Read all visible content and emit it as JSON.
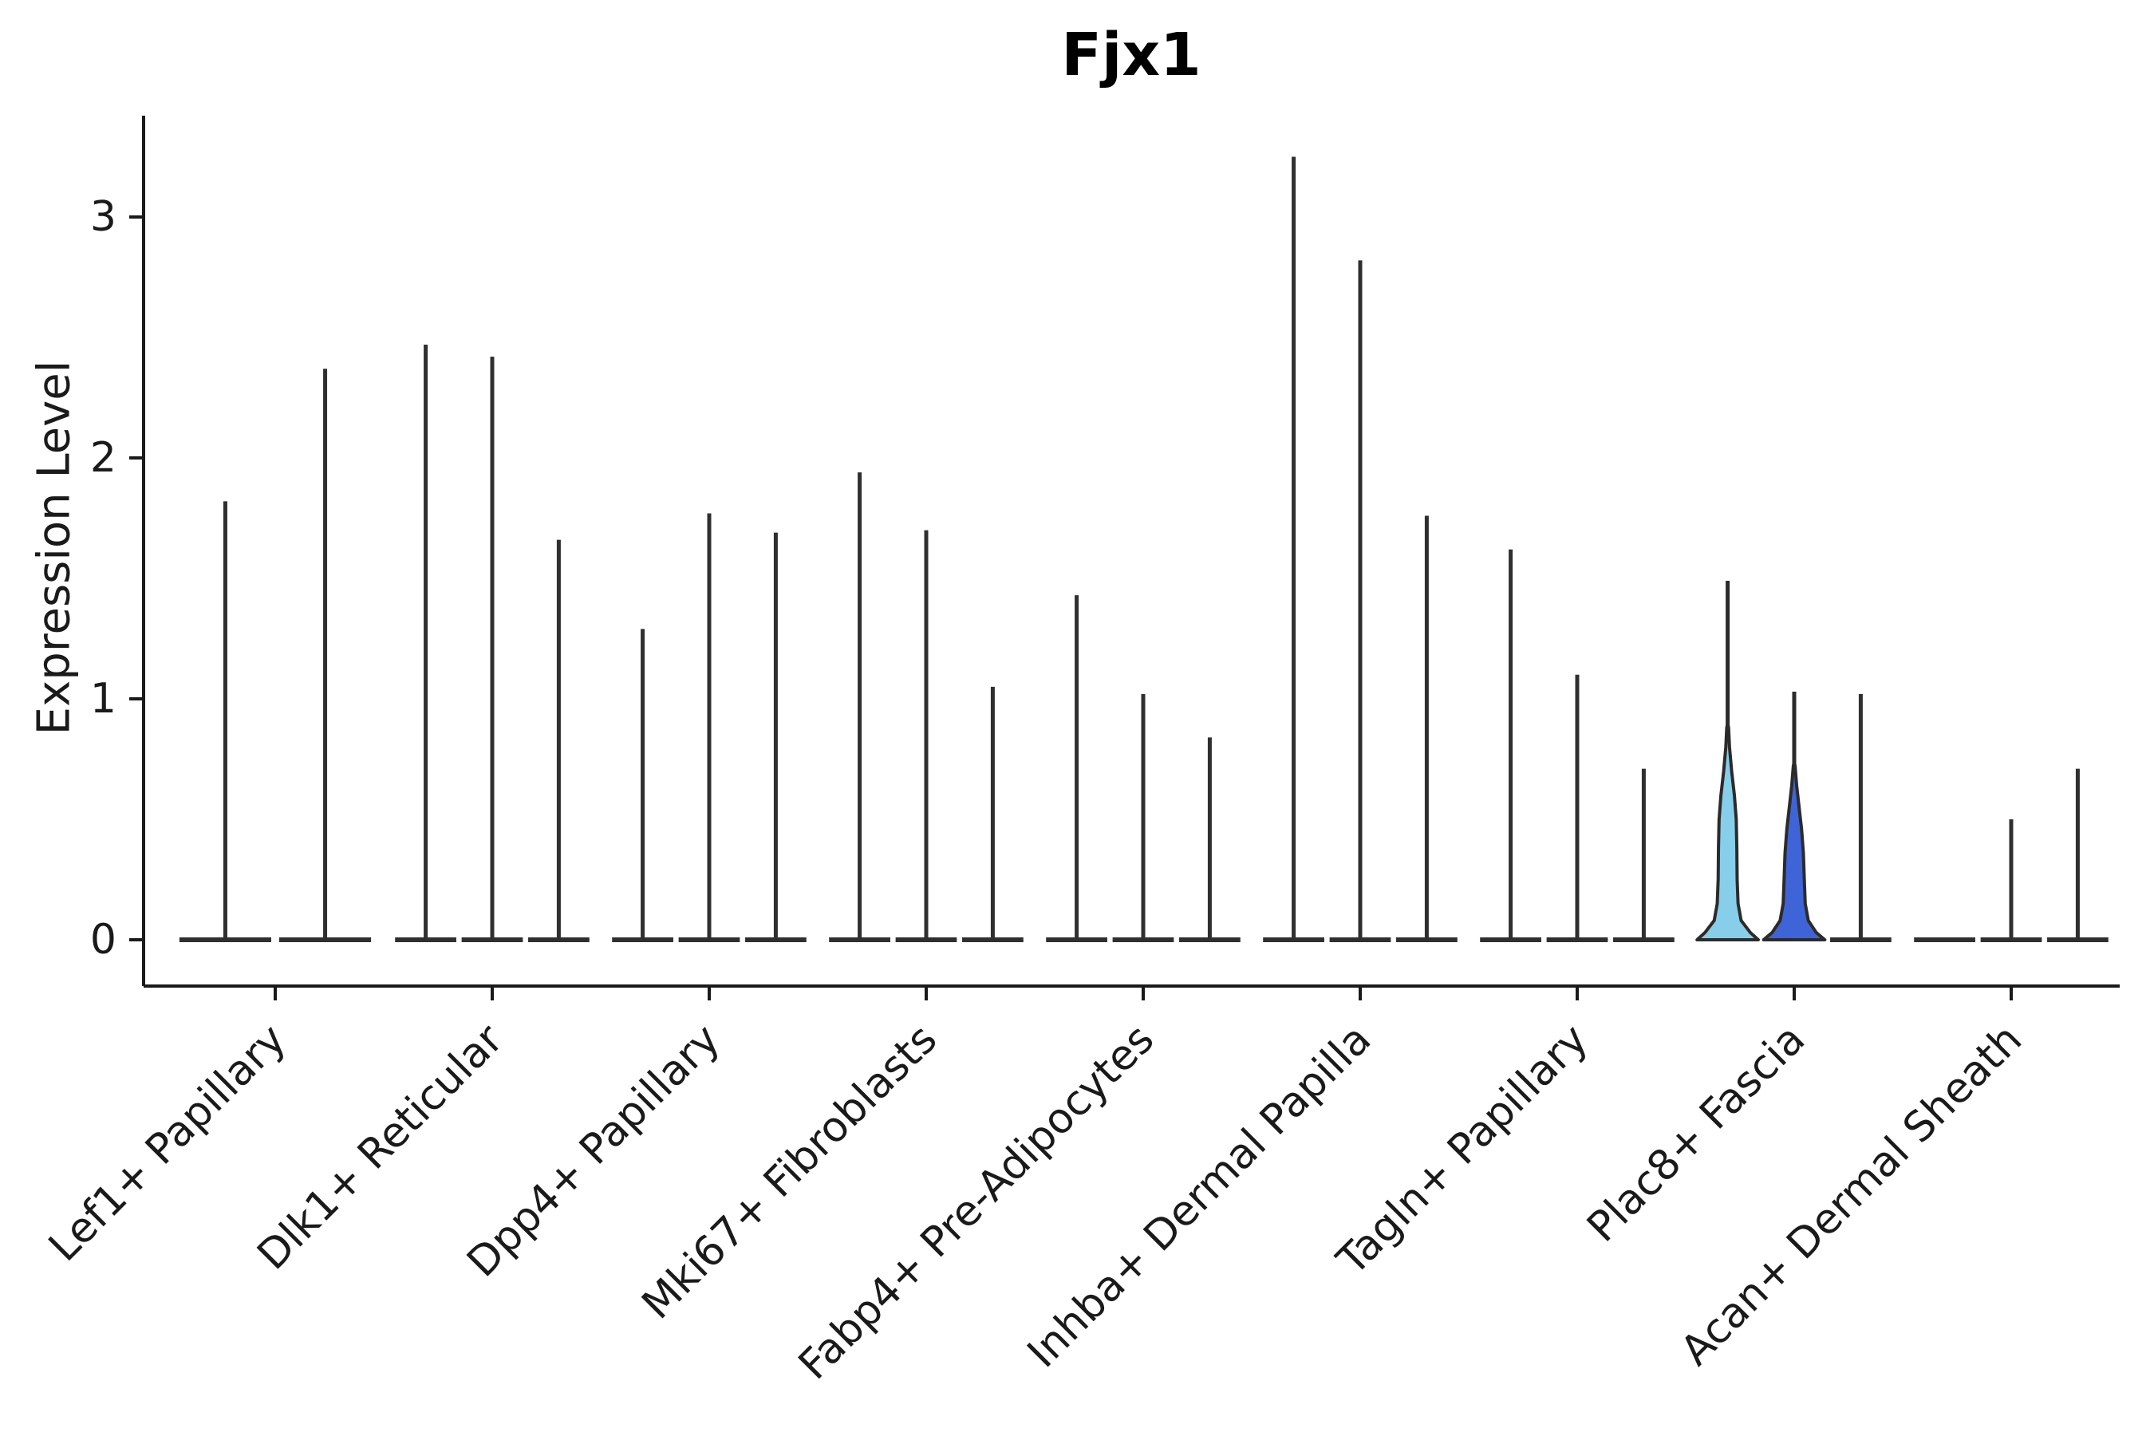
{
  "chart_data": {
    "type": "violin",
    "title": "Fjx1",
    "xlabel": "",
    "ylabel": "Expression Level",
    "ylim": [
      -0.19,
      3.42
    ],
    "yticks": [
      0,
      1,
      2,
      3
    ],
    "grid": false,
    "legend": "none",
    "categories": [
      "Lef1+ Papillary",
      "Dlk1+ Reticular",
      "Dpp4+ Papillary",
      "Mki67+ Fibroblasts",
      "Fabp4+ Pre-Adipocytes",
      "Inhba+ Dermal Papilla",
      "Tagln+ Papillary",
      "Plac8+ Fascia",
      "Acan+ Dermal Sheath"
    ],
    "colors": {
      "spike": "#2f2f2f",
      "spine": "#1a1a1a",
      "violin_light_blue": "#87CEEB",
      "violin_royal_blue": "#3F64D7",
      "violin_edge": "#2b2b2b"
    },
    "violins": [
      {
        "category": "Lef1+ Papillary",
        "cat": 0,
        "slot": 0,
        "slots": 2,
        "max": 1.82
      },
      {
        "category": "Lef1+ Papillary",
        "cat": 0,
        "slot": 1,
        "slots": 2,
        "max": 2.37
      },
      {
        "category": "Dlk1+ Reticular",
        "cat": 1,
        "slot": 0,
        "slots": 3,
        "max": 2.47
      },
      {
        "category": "Dlk1+ Reticular",
        "cat": 1,
        "slot": 1,
        "slots": 3,
        "max": 2.42
      },
      {
        "category": "Dlk1+ Reticular",
        "cat": 1,
        "slot": 2,
        "slots": 3,
        "max": 1.66
      },
      {
        "category": "Dpp4+ Papillary",
        "cat": 2,
        "slot": 0,
        "slots": 3,
        "max": 1.29
      },
      {
        "category": "Dpp4+ Papillary",
        "cat": 2,
        "slot": 1,
        "slots": 3,
        "max": 1.77
      },
      {
        "category": "Dpp4+ Papillary",
        "cat": 2,
        "slot": 2,
        "slots": 3,
        "max": 1.69
      },
      {
        "category": "Mki67+ Fibroblasts",
        "cat": 3,
        "slot": 0,
        "slots": 3,
        "max": 1.94
      },
      {
        "category": "Mki67+ Fibroblasts",
        "cat": 3,
        "slot": 1,
        "slots": 3,
        "max": 1.7
      },
      {
        "category": "Mki67+ Fibroblasts",
        "cat": 3,
        "slot": 2,
        "slots": 3,
        "max": 1.05
      },
      {
        "category": "Fabp4+ Pre-Adipocytes",
        "cat": 4,
        "slot": 0,
        "slots": 3,
        "max": 1.43
      },
      {
        "category": "Fabp4+ Pre-Adipocytes",
        "cat": 4,
        "slot": 1,
        "slots": 3,
        "max": 1.02
      },
      {
        "category": "Fabp4+ Pre-Adipocytes",
        "cat": 4,
        "slot": 2,
        "slots": 3,
        "max": 0.84
      },
      {
        "category": "Inhba+ Dermal Papilla",
        "cat": 5,
        "slot": 0,
        "slots": 3,
        "max": 3.25
      },
      {
        "category": "Inhba+ Dermal Papilla",
        "cat": 5,
        "slot": 1,
        "slots": 3,
        "max": 2.82
      },
      {
        "category": "Inhba+ Dermal Papilla",
        "cat": 5,
        "slot": 2,
        "slots": 3,
        "max": 1.76
      },
      {
        "category": "Tagln+ Papillary",
        "cat": 6,
        "slot": 0,
        "slots": 3,
        "max": 1.62
      },
      {
        "category": "Tagln+ Papillary",
        "cat": 6,
        "slot": 1,
        "slots": 3,
        "max": 1.1
      },
      {
        "category": "Tagln+ Papillary",
        "cat": 6,
        "slot": 2,
        "slots": 3,
        "max": 0.71
      },
      {
        "category": "Plac8+ Fascia",
        "cat": 7,
        "slot": 0,
        "slots": 3,
        "max": 1.49,
        "fill": "#87CEEB",
        "profile": [
          [
            0.0,
            1.0
          ],
          [
            0.03,
            0.74
          ],
          [
            0.08,
            0.44
          ],
          [
            0.15,
            0.34
          ],
          [
            0.25,
            0.31
          ],
          [
            0.38,
            0.3
          ],
          [
            0.5,
            0.28
          ],
          [
            0.6,
            0.22
          ],
          [
            0.7,
            0.13
          ],
          [
            0.8,
            0.06
          ],
          [
            0.88,
            0.03
          ]
        ]
      },
      {
        "category": "Plac8+ Fascia",
        "cat": 7,
        "slot": 1,
        "slots": 3,
        "max": 1.03,
        "fill": "#3F64D7",
        "profile": [
          [
            0.0,
            1.0
          ],
          [
            0.03,
            0.72
          ],
          [
            0.08,
            0.46
          ],
          [
            0.15,
            0.36
          ],
          [
            0.25,
            0.33
          ],
          [
            0.36,
            0.3
          ],
          [
            0.46,
            0.24
          ],
          [
            0.55,
            0.16
          ],
          [
            0.64,
            0.08
          ],
          [
            0.72,
            0.03
          ]
        ]
      },
      {
        "category": "Plac8+ Fascia",
        "cat": 7,
        "slot": 2,
        "slots": 3,
        "max": 1.02
      },
      {
        "category": "Acan+ Dermal Sheath",
        "cat": 8,
        "slot": 0,
        "slots": 3,
        "max": 0.0
      },
      {
        "category": "Acan+ Dermal Sheath",
        "cat": 8,
        "slot": 1,
        "slots": 3,
        "max": 0.5
      },
      {
        "category": "Acan+ Dermal Sheath",
        "cat": 8,
        "slot": 2,
        "slots": 3,
        "max": 0.71
      }
    ]
  }
}
